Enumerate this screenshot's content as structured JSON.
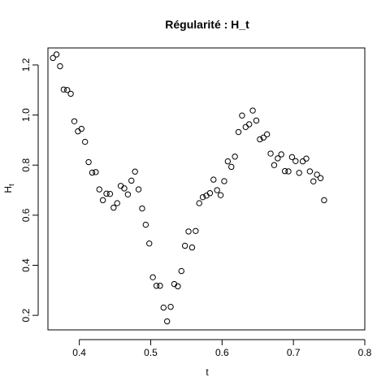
{
  "chart_data": {
    "type": "scatter",
    "title": "Régularité : H_t",
    "xlabel": "t",
    "ylabel": "H",
    "ylabel_subscript": "t",
    "xlim": [
      0.356,
      0.8
    ],
    "ylim": [
      0.142,
      1.268
    ],
    "x_ticks": [
      0.4,
      0.5,
      0.6,
      0.7,
      0.8
    ],
    "x_tick_labels": [
      "0.4",
      "0.5",
      "0.6",
      "0.7",
      "0.8"
    ],
    "y_ticks": [
      0.2,
      0.4,
      0.6,
      0.8,
      1.0,
      1.2
    ],
    "y_tick_labels": [
      "0.2",
      "0.4",
      "0.6",
      "0.8",
      "1.0",
      "1.2"
    ],
    "grid": false,
    "marker": "open-circle",
    "marker_color": "#000000",
    "points": [
      [
        0.363,
        1.228
      ],
      [
        0.368,
        1.242
      ],
      [
        0.373,
        1.195
      ],
      [
        0.378,
        1.102
      ],
      [
        0.383,
        1.1
      ],
      [
        0.388,
        1.085
      ],
      [
        0.393,
        0.975
      ],
      [
        0.398,
        0.935
      ],
      [
        0.403,
        0.945
      ],
      [
        0.408,
        0.893
      ],
      [
        0.413,
        0.812
      ],
      [
        0.418,
        0.77
      ],
      [
        0.423,
        0.772
      ],
      [
        0.428,
        0.703
      ],
      [
        0.433,
        0.66
      ],
      [
        0.438,
        0.686
      ],
      [
        0.443,
        0.685
      ],
      [
        0.448,
        0.63
      ],
      [
        0.453,
        0.648
      ],
      [
        0.458,
        0.717
      ],
      [
        0.463,
        0.707
      ],
      [
        0.468,
        0.683
      ],
      [
        0.473,
        0.738
      ],
      [
        0.478,
        0.774
      ],
      [
        0.483,
        0.703
      ],
      [
        0.488,
        0.627
      ],
      [
        0.493,
        0.562
      ],
      [
        0.498,
        0.487
      ],
      [
        0.503,
        0.352
      ],
      [
        0.508,
        0.318
      ],
      [
        0.513,
        0.318
      ],
      [
        0.518,
        0.231
      ],
      [
        0.523,
        0.176
      ],
      [
        0.528,
        0.234
      ],
      [
        0.533,
        0.325
      ],
      [
        0.538,
        0.316
      ],
      [
        0.543,
        0.377
      ],
      [
        0.548,
        0.478
      ],
      [
        0.553,
        0.535
      ],
      [
        0.558,
        0.471
      ],
      [
        0.563,
        0.537
      ],
      [
        0.568,
        0.648
      ],
      [
        0.573,
        0.672
      ],
      [
        0.578,
        0.678
      ],
      [
        0.583,
        0.688
      ],
      [
        0.588,
        0.742
      ],
      [
        0.593,
        0.7
      ],
      [
        0.598,
        0.68
      ],
      [
        0.603,
        0.736
      ],
      [
        0.608,
        0.815
      ],
      [
        0.613,
        0.793
      ],
      [
        0.618,
        0.834
      ],
      [
        0.623,
        0.932
      ],
      [
        0.628,
        0.998
      ],
      [
        0.633,
        0.952
      ],
      [
        0.638,
        0.963
      ],
      [
        0.643,
        1.018
      ],
      [
        0.648,
        0.978
      ],
      [
        0.653,
        0.903
      ],
      [
        0.658,
        0.91
      ],
      [
        0.663,
        0.923
      ],
      [
        0.668,
        0.846
      ],
      [
        0.673,
        0.8
      ],
      [
        0.678,
        0.827
      ],
      [
        0.683,
        0.843
      ],
      [
        0.688,
        0.776
      ],
      [
        0.693,
        0.775
      ],
      [
        0.698,
        0.832
      ],
      [
        0.703,
        0.816
      ],
      [
        0.708,
        0.769
      ],
      [
        0.713,
        0.815
      ],
      [
        0.718,
        0.826
      ],
      [
        0.723,
        0.775
      ],
      [
        0.728,
        0.735
      ],
      [
        0.733,
        0.762
      ],
      [
        0.738,
        0.748
      ],
      [
        0.743,
        0.66
      ]
    ]
  }
}
